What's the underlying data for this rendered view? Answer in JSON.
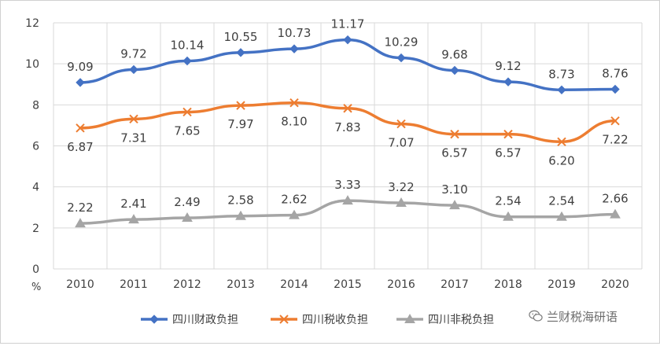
{
  "chart_data": {
    "type": "line",
    "title": "",
    "xlabel": "",
    "ylabel": "%",
    "ylim": [
      0,
      12
    ],
    "yticks": [
      "0",
      "2",
      "4",
      "6",
      "8",
      "10",
      "12"
    ],
    "grid": true,
    "legend_position": "bottom",
    "categories": [
      "2010",
      "2011",
      "2012",
      "2013",
      "2014",
      "2015",
      "2016",
      "2017",
      "2018",
      "2019",
      "2020"
    ],
    "series": [
      {
        "name": "四川财政负担",
        "marker": "diamond",
        "color": "#4472C4",
        "label_position": "above",
        "values": [
          9.09,
          9.72,
          10.14,
          10.55,
          10.73,
          11.17,
          10.29,
          9.68,
          9.12,
          8.73,
          8.76
        ],
        "labels": [
          "9.09",
          "9.72",
          "10.14",
          "10.55",
          "10.73",
          "11.17",
          "10.29",
          "9.68",
          "9.12",
          "8.73",
          "8.76"
        ]
      },
      {
        "name": "四川税收负担",
        "marker": "x",
        "color": "#ED7D31",
        "label_position": "below",
        "values": [
          6.87,
          7.31,
          7.65,
          7.97,
          8.1,
          7.83,
          7.07,
          6.57,
          6.57,
          6.2,
          7.22
        ],
        "labels": [
          "6.87",
          "7.31",
          "7.65",
          "7.97",
          "8.10",
          "7.83",
          "7.07",
          "6.57",
          "6.57",
          "6.20",
          "7.22"
        ]
      },
      {
        "name": "四川非税负担",
        "marker": "triangle",
        "color": "#A5A5A5",
        "label_position": "above",
        "values": [
          2.22,
          2.41,
          2.49,
          2.58,
          2.62,
          3.33,
          3.22,
          3.1,
          2.54,
          2.54,
          2.66
        ],
        "labels": [
          "2.22",
          "2.41",
          "2.49",
          "2.58",
          "2.62",
          "3.33",
          "3.22",
          "3.10",
          "2.54",
          "2.54",
          "2.66"
        ]
      }
    ]
  },
  "watermark": {
    "text": "兰财税海研语",
    "icon": "wechat-icon"
  },
  "colors": {
    "grid": "#d9d9d9",
    "axis_text": "#404040",
    "label_text": "#404040"
  }
}
